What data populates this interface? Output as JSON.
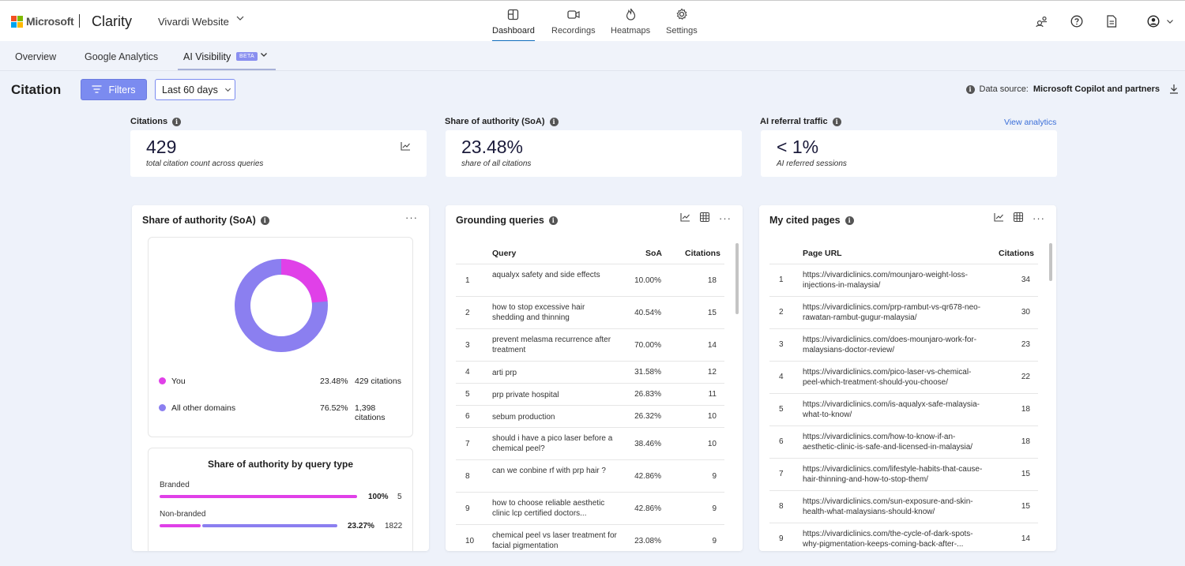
{
  "brand": {
    "company": "Microsoft",
    "product": "Clarity"
  },
  "project": {
    "name": "Vivardi Website"
  },
  "nav": [
    {
      "label": "Dashboard",
      "icon": "dashboard-icon",
      "active": true
    },
    {
      "label": "Recordings",
      "icon": "video-icon"
    },
    {
      "label": "Heatmaps",
      "icon": "flame-icon"
    },
    {
      "label": "Settings",
      "icon": "gear-icon"
    }
  ],
  "tabs": {
    "overview": "Overview",
    "google_analytics": "Google Analytics",
    "ai_visibility": "AI Visibility",
    "beta": "BETA"
  },
  "page": {
    "title": "Citation",
    "filters_label": "Filters",
    "date_range": "Last 60 days"
  },
  "datasource": {
    "label": "Data source:",
    "value": "Microsoft Copilot and partners"
  },
  "kpis": {
    "citations": {
      "label": "Citations",
      "value": "429",
      "sub": "total citation count across queries"
    },
    "soa": {
      "label": "Share of authority (SoA)",
      "value": "23.48%",
      "sub": "share of all citations"
    },
    "referral": {
      "label": "AI referral traffic",
      "value": "< 1%",
      "sub": "AI referred sessions",
      "link": "View analytics"
    }
  },
  "soa_panel": {
    "title": "Share of authority (SoA)",
    "you_fraction": 0.2348,
    "legend": [
      {
        "name": "You",
        "pct": "23.48%",
        "citations": "429 citations",
        "color": "#e040e8"
      },
      {
        "name": "All other domains",
        "pct": "76.52%",
        "citations": "1,398 citations",
        "color": "#8b7ff0"
      }
    ],
    "query_type": {
      "title": "Share of authority by query type",
      "rows": [
        {
          "label": "Branded",
          "pct": "100%",
          "count": "5",
          "you_fraction": 1.0
        },
        {
          "label": "Non-branded",
          "pct": "23.27%",
          "count": "1822",
          "you_fraction": 0.2327
        }
      ]
    }
  },
  "grounding": {
    "title": "Grounding queries",
    "headers": {
      "query": "Query",
      "soa": "SoA",
      "citations": "Citations"
    },
    "rows": [
      {
        "n": "1",
        "query": "aqualyx safety and side effects",
        "soa": "10.00%",
        "cit": "18"
      },
      {
        "n": "2",
        "query": "how to stop excessive hair shedding and thinning",
        "soa": "40.54%",
        "cit": "15"
      },
      {
        "n": "3",
        "query": "prevent melasma recurrence after treatment",
        "soa": "70.00%",
        "cit": "14"
      },
      {
        "n": "4",
        "query": "arti prp",
        "soa": "31.58%",
        "cit": "12"
      },
      {
        "n": "5",
        "query": "prp private hospital",
        "soa": "26.83%",
        "cit": "11"
      },
      {
        "n": "6",
        "query": "sebum production",
        "soa": "26.32%",
        "cit": "10"
      },
      {
        "n": "7",
        "query": "should i have a pico laser before a chemical peel?",
        "soa": "38.46%",
        "cit": "10"
      },
      {
        "n": "8",
        "query": "can we conbine rf with prp hair ?",
        "soa": "42.86%",
        "cit": "9"
      },
      {
        "n": "9",
        "query": "how to choose reliable aesthetic clinic lcp certified doctors...",
        "soa": "42.86%",
        "cit": "9"
      },
      {
        "n": "10",
        "query": "chemical peel vs laser treatment for facial pigmentation",
        "soa": "23.08%",
        "cit": "9"
      }
    ]
  },
  "cited_pages": {
    "title": "My cited pages",
    "headers": {
      "url": "Page URL",
      "citations": "Citations"
    },
    "rows": [
      {
        "n": "1",
        "url": "https://vivardiclinics.com/mounjaro-weight-loss-injections-in-malaysia/",
        "cit": "34"
      },
      {
        "n": "2",
        "url": "https://vivardiclinics.com/prp-rambut-vs-qr678-neo-rawatan-rambut-gugur-malaysia/",
        "cit": "30"
      },
      {
        "n": "3",
        "url": "https://vivardiclinics.com/does-mounjaro-work-for-malaysians-doctor-review/",
        "cit": "23"
      },
      {
        "n": "4",
        "url": "https://vivardiclinics.com/pico-laser-vs-chemical-peel-which-treatment-should-you-choose/",
        "cit": "22"
      },
      {
        "n": "5",
        "url": "https://vivardiclinics.com/is-aqualyx-safe-malaysia-what-to-know/",
        "cit": "18"
      },
      {
        "n": "6",
        "url": "https://vivardiclinics.com/how-to-know-if-an-aesthetic-clinic-is-safe-and-licensed-in-malaysia/",
        "cit": "18"
      },
      {
        "n": "7",
        "url": "https://vivardiclinics.com/lifestyle-habits-that-cause-hair-thinning-and-how-to-stop-them/",
        "cit": "15"
      },
      {
        "n": "8",
        "url": "https://vivardiclinics.com/sun-exposure-and-skin-health-what-malaysians-should-know/",
        "cit": "15"
      },
      {
        "n": "9",
        "url": "https://vivardiclinics.com/the-cycle-of-dark-spots-why-pigmentation-keeps-coming-back-after-...",
        "cit": "14"
      }
    ]
  },
  "colors": {
    "accent": "#7b8bf0",
    "you": "#e040e8",
    "others": "#8b7ff0"
  }
}
